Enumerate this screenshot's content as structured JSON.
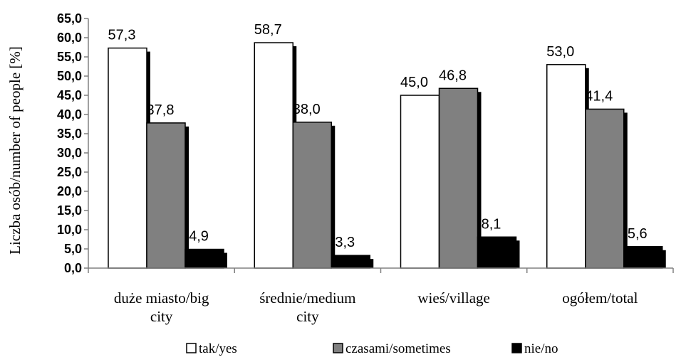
{
  "chart_data": {
    "type": "bar",
    "ylabel": "Liczba osób/number of people [%]",
    "ylim": [
      0,
      65
    ],
    "ytick_step": 5,
    "ytick_labels": [
      "0,0",
      "5,0",
      "10,0",
      "15,0",
      "20,0",
      "25,0",
      "30,0",
      "35,0",
      "40,0",
      "45,0",
      "50,0",
      "55,0",
      "60,0",
      "65,0"
    ],
    "categories": [
      [
        "duże miasto/big",
        "city"
      ],
      [
        "średnie/medium",
        "city"
      ],
      [
        "wieś/village"
      ],
      [
        "ogółem/total"
      ]
    ],
    "series": [
      {
        "name": "tak/yes",
        "color": "#ffffff",
        "values": [
          57.3,
          58.7,
          45.0,
          53.0
        ],
        "labels": [
          "57,3",
          "58,7",
          "45,0",
          "53,0"
        ]
      },
      {
        "name": "czasami/sometimes",
        "color": "#808080",
        "values": [
          37.8,
          38.0,
          46.8,
          41.4
        ],
        "labels": [
          "37,8",
          "38,0",
          "46,8",
          "41,4"
        ]
      },
      {
        "name": "nie/no",
        "color": "#000000",
        "values": [
          4.9,
          3.3,
          8.1,
          5.6
        ],
        "labels": [
          "4,9",
          "3,3",
          "8,1",
          "5,6"
        ]
      }
    ],
    "legend_position": "bottom",
    "grid": false
  }
}
